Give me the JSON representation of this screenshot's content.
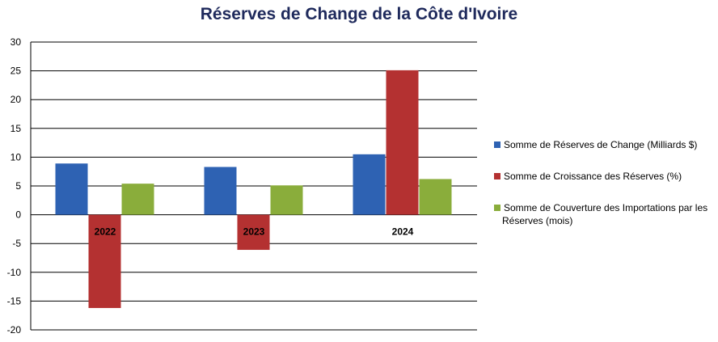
{
  "chart_data": {
    "type": "bar",
    "title": "Réserves de Change de la Côte d'Ivoire",
    "xlabel": "",
    "ylabel": "",
    "categories": [
      "2022",
      "2023",
      "2024"
    ],
    "series": [
      {
        "name": "Somme de Réserves de Change (Milliards  $)",
        "values": [
          8.9,
          8.3,
          10.5
        ],
        "color": "#2e62b3"
      },
      {
        "name": "Somme de Croissance  des Réserves (%)",
        "values": [
          -16.2,
          -6.1,
          25.1
        ],
        "color": "#b43131"
      },
      {
        "name": "Somme de Couverture des Importations par les Réserves (mois)",
        "values": [
          5.4,
          5.1,
          6.2
        ],
        "color": "#8aad3b"
      }
    ],
    "ylim": [
      -20,
      30
    ],
    "yticks": [
      30,
      25,
      20,
      15,
      10,
      5,
      0,
      -5,
      -10,
      -15,
      -20
    ],
    "grid": true,
    "legend_position": "right"
  }
}
